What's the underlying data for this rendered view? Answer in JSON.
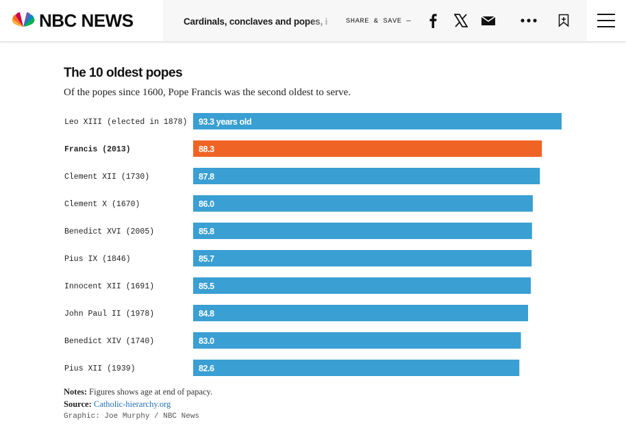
{
  "header": {
    "brand": "NBC NEWS",
    "headline": "Cardinals, conclaves and popes, i",
    "share_label": "SHARE & SAVE —",
    "icons": [
      "facebook-icon",
      "x-icon",
      "email-icon",
      "more-icon",
      "bookmark-icon",
      "menu-icon"
    ]
  },
  "chart": {
    "title": "The 10 oldest popes",
    "subtitle": "Of the popes since 1600, Pope Francis was the second oldest to serve.",
    "notes_label": "Notes:",
    "notes_text": "Figures shows age at end of papacy.",
    "source_label": "Source:",
    "source_link": "Catholic-hierarchy.org",
    "credit": "Graphic: Joe Murphy / NBC News"
  },
  "colors": {
    "bar": "#3a9fd3",
    "highlight": "#ef6424",
    "bar_text": "#ffffff"
  },
  "chart_data": {
    "type": "bar",
    "orientation": "horizontal",
    "title": "The 10 oldest popes",
    "subtitle": "Of the popes since 1600, Pope Francis was the second oldest to serve.",
    "categories": [
      "Leo XIII (elected in 1878)",
      "Francis (2013)",
      "Clement XII (1730)",
      "Clement X (1670)",
      "Benedict XVI (2005)",
      "Pius IX (1846)",
      "Innocent XII (1691)",
      "John Paul II (1978)",
      "Benedict XIV (1740)",
      "Pius XII (1939)"
    ],
    "values": [
      93.3,
      88.3,
      87.8,
      86.0,
      85.8,
      85.7,
      85.5,
      84.8,
      83.0,
      82.6
    ],
    "value_labels": [
      "93.3 years old",
      "88.3",
      "87.8",
      "86.0",
      "85.8",
      "85.7",
      "85.5",
      "84.8",
      "83.0",
      "82.6"
    ],
    "highlight_index": 1,
    "xlim": [
      0,
      93.3
    ],
    "grid": false,
    "legend": "none"
  }
}
